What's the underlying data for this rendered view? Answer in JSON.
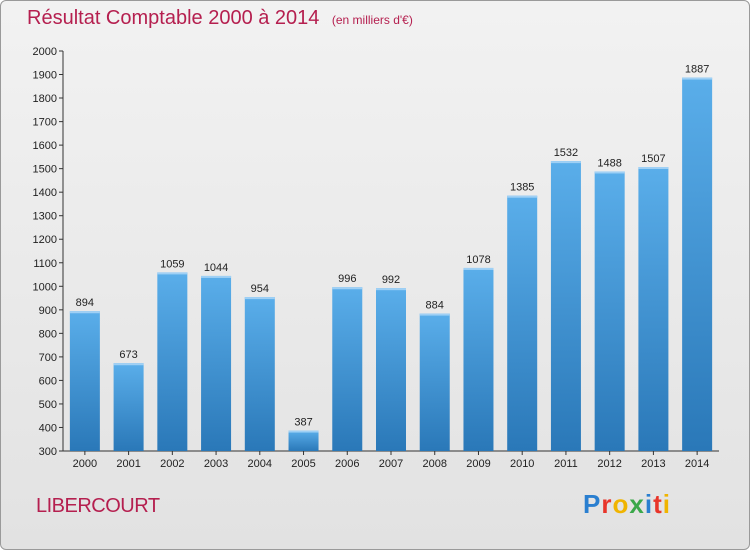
{
  "chart_data": {
    "type": "bar",
    "title": "Résultat Comptable 2000 à 2014",
    "subtitle": "(en milliers d'€)",
    "categories": [
      "2000",
      "2001",
      "2002",
      "2003",
      "2004",
      "2005",
      "2006",
      "2007",
      "2008",
      "2009",
      "2010",
      "2011",
      "2012",
      "2013",
      "2014"
    ],
    "values": [
      894,
      673,
      1059,
      1044,
      954,
      387,
      996,
      992,
      884,
      1078,
      1385,
      1532,
      1488,
      1507,
      1887
    ],
    "ylim": [
      300,
      2000
    ],
    "yticks": [
      300,
      400,
      500,
      600,
      700,
      800,
      900,
      1000,
      1100,
      1200,
      1300,
      1400,
      1500,
      1600,
      1700,
      1800,
      1900,
      2000
    ],
    "grid": false,
    "bar_color": "#3a8fd6"
  },
  "commune": "LIBERCOURT",
  "logo": {
    "letters": [
      "P",
      "r",
      "o",
      "x",
      "i",
      "t",
      "i"
    ],
    "colors": [
      "#2a7fd0",
      "#e8352a",
      "#f0b400",
      "#3aa84a",
      "#2a7fd0",
      "#e8352a",
      "#f0b400"
    ]
  }
}
